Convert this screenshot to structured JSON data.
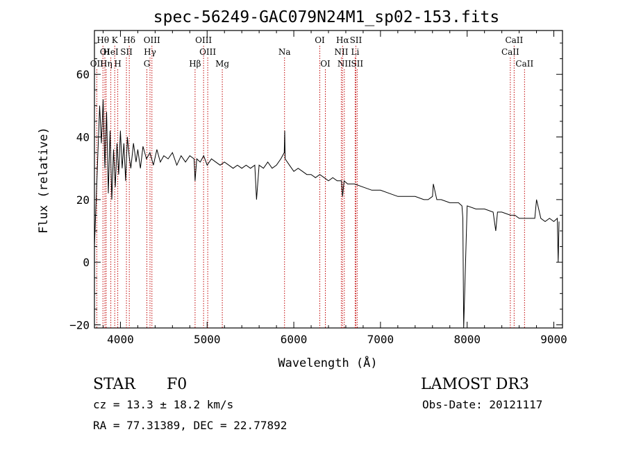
{
  "chart_data": {
    "type": "line",
    "title": "spec-56249-GAC079N24M1_sp02-153.fits",
    "xlabel": "Wavelength (Å)",
    "ylabel": "Flux (relative)",
    "xlim": [
      3700,
      9100
    ],
    "ylim": [
      -21,
      74
    ],
    "xticks": [
      4000,
      5000,
      6000,
      7000,
      8000,
      9000
    ],
    "xtick_labels": [
      "4000",
      "5000",
      "6000",
      "7000",
      "8000",
      "9000"
    ],
    "yticks": [
      -20,
      0,
      20,
      40,
      60
    ],
    "ytick_labels": [
      "−20",
      "0",
      "20",
      "40",
      "60"
    ],
    "spectrum": {
      "x": [
        3700,
        3720,
        3740,
        3760,
        3780,
        3800,
        3820,
        3840,
        3860,
        3880,
        3900,
        3920,
        3940,
        3960,
        3980,
        4000,
        4020,
        4040,
        4060,
        4080,
        4100,
        4120,
        4150,
        4180,
        4200,
        4230,
        4260,
        4300,
        4340,
        4380,
        4420,
        4460,
        4500,
        4550,
        4600,
        4650,
        4700,
        4750,
        4800,
        4850,
        4861,
        4880,
        4920,
        4960,
        5000,
        5050,
        5100,
        5150,
        5200,
        5250,
        5300,
        5350,
        5400,
        5450,
        5500,
        5550,
        5570,
        5600,
        5650,
        5700,
        5750,
        5800,
        5850,
        5890,
        5895,
        5900,
        5950,
        6000,
        6050,
        6100,
        6150,
        6200,
        6250,
        6300,
        6350,
        6400,
        6450,
        6500,
        6550,
        6563,
        6580,
        6620,
        6700,
        6800,
        6900,
        7000,
        7100,
        7200,
        7300,
        7400,
        7500,
        7550,
        7600,
        7610,
        7650,
        7700,
        7800,
        7900,
        7940,
        7950,
        7960,
        8000,
        8100,
        8200,
        8300,
        8330,
        8350,
        8400,
        8500,
        8550,
        8600,
        8700,
        8780,
        8800,
        8850,
        8900,
        8950,
        9000,
        9040,
        9050,
        9060
      ],
      "y": [
        5,
        20,
        35,
        50,
        38,
        52,
        30,
        48,
        22,
        42,
        20,
        36,
        24,
        38,
        28,
        42,
        30,
        38,
        26,
        40,
        34,
        30,
        38,
        32,
        36,
        30,
        37,
        33,
        35,
        31,
        36,
        32,
        34,
        33,
        35,
        31,
        34,
        32,
        34,
        33,
        26,
        33,
        32,
        34,
        31,
        33,
        32,
        31,
        32,
        31,
        30,
        31,
        30,
        31,
        30,
        31,
        20,
        31,
        30,
        32,
        30,
        31,
        33,
        35,
        42,
        33,
        31,
        29,
        30,
        29,
        28,
        28,
        27,
        28,
        27,
        26,
        27,
        26,
        26,
        21,
        26,
        25,
        25,
        24,
        23,
        23,
        22,
        21,
        21,
        21,
        20,
        20,
        21,
        25,
        20,
        20,
        19,
        19,
        18,
        14,
        -21,
        18,
        17,
        17,
        16,
        10,
        16,
        16,
        15,
        15,
        14,
        14,
        14,
        20,
        14,
        13,
        14,
        13,
        14,
        0,
        13
      ]
    },
    "spectral_lines": [
      {
        "name": "Hθ",
        "wavelength": 3798,
        "row": 0
      },
      {
        "name": "OI",
        "wavelength": 3820,
        "row": 1
      },
      {
        "name": "OII",
        "wavelength": 3727,
        "row": 2
      },
      {
        "name": "Hη",
        "wavelength": 3835,
        "row": 2
      },
      {
        "name": "K",
        "wavelength": 3934,
        "row": 0
      },
      {
        "name": "HeI",
        "wavelength": 3889,
        "row": 1
      },
      {
        "name": "H",
        "wavelength": 3969,
        "row": 2
      },
      {
        "name": "SII",
        "wavelength": 4069,
        "row": 1
      },
      {
        "name": "Hδ",
        "wavelength": 4102,
        "row": 0
      },
      {
        "name": "OIII",
        "wavelength": 4363,
        "row": 0
      },
      {
        "name": "Hγ",
        "wavelength": 4341,
        "row": 1
      },
      {
        "name": "G",
        "wavelength": 4305,
        "row": 2
      },
      {
        "name": "Hβ",
        "wavelength": 4861,
        "row": 2
      },
      {
        "name": "OIII",
        "wavelength": 4959,
        "row": 0
      },
      {
        "name": "OIII",
        "wavelength": 5007,
        "row": 1
      },
      {
        "name": "Mg",
        "wavelength": 5175,
        "row": 2
      },
      {
        "name": "Na",
        "wavelength": 5893,
        "row": 1
      },
      {
        "name": "OI",
        "wavelength": 6300,
        "row": 0
      },
      {
        "name": "OI",
        "wavelength": 6364,
        "row": 2
      },
      {
        "name": "Hα",
        "wavelength": 6563,
        "row": 0
      },
      {
        "name": "NII",
        "wavelength": 6548,
        "row": 1
      },
      {
        "name": "NII",
        "wavelength": 6583,
        "row": 2
      },
      {
        "name": "SII",
        "wavelength": 6716,
        "row": 0
      },
      {
        "name": "Li",
        "wavelength": 6708,
        "row": 1
      },
      {
        "name": "SII",
        "wavelength": 6731,
        "row": 2
      },
      {
        "name": "CaII",
        "wavelength": 8542,
        "row": 0
      },
      {
        "name": "CaII",
        "wavelength": 8498,
        "row": 1
      },
      {
        "name": "CaII",
        "wavelength": 8662,
        "row": 2
      }
    ]
  },
  "info": {
    "class_label": "STAR",
    "subclass_label": "F0",
    "survey": "LAMOST DR3",
    "redshift": "cz = 13.3 ± 18.2 km/s",
    "obs_date": "Obs-Date: 20121117",
    "coords": "RA =  77.31389, DEC =  22.77892"
  }
}
